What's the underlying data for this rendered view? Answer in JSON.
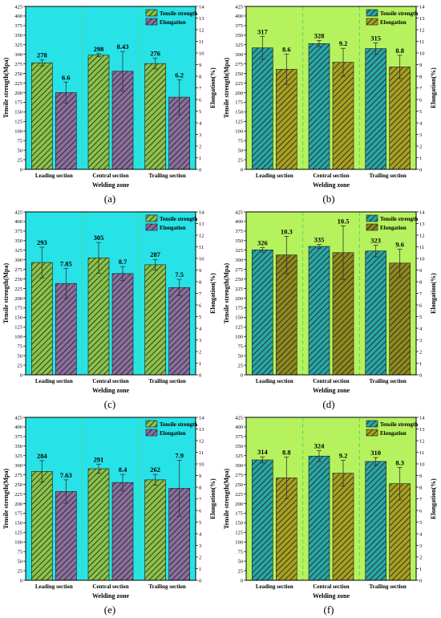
{
  "chart_data": [
    {
      "id": "a",
      "type": "bar",
      "caption": "(a)",
      "xlabel": "Welding zone",
      "ylabel": "Tensile strength(Mpa)",
      "y2label": "Elongation(%)",
      "ylim": [
        0,
        425
      ],
      "y2lim": [
        0,
        14
      ],
      "categories": [
        "Leading section",
        "Central section",
        "Trailing section"
      ],
      "background": "#27e3e7",
      "series": [
        {
          "name": "Tensile strength",
          "axis": "left",
          "values": [
            278,
            298,
            276
          ],
          "labels": [
            "278",
            "298",
            "276"
          ],
          "errors": [
            8,
            4,
            14
          ],
          "color": "#8bc34a"
        },
        {
          "name": "Elongation",
          "axis": "right",
          "values": [
            6.6,
            8.43,
            6.2
          ],
          "labels": [
            "6.6",
            "8.43",
            "6.2"
          ],
          "errors": [
            0.9,
            1.7,
            1.5
          ],
          "color": "#8a6f9e"
        }
      ]
    },
    {
      "id": "b",
      "type": "bar",
      "caption": "(b)",
      "xlabel": "Welding zone",
      "ylabel": "Tensile strength(Mpa)",
      "y2label": "Elongation(%)",
      "ylim": [
        0,
        425
      ],
      "y2lim": [
        0,
        14
      ],
      "categories": [
        "Leading section",
        "Central section",
        "Trailing section"
      ],
      "background": "#b6f25e",
      "series": [
        {
          "name": "Tensile strength",
          "axis": "left",
          "values": [
            317,
            328,
            315
          ],
          "labels": [
            "317",
            "328",
            "315"
          ],
          "errors": [
            30,
            8,
            15
          ],
          "color": "#2aa6a6"
        },
        {
          "name": "Elongation",
          "axis": "right",
          "values": [
            8.6,
            9.2,
            8.8
          ],
          "labels": [
            "8.6",
            "9.2",
            "8.8"
          ],
          "errors": [
            1.3,
            1.2,
            1.0
          ],
          "color": "#a8a022"
        }
      ]
    },
    {
      "id": "c",
      "type": "bar",
      "caption": "(c)",
      "xlabel": "Welding zone",
      "ylabel": "Tensile strength(Mpa)",
      "y2label": "Elongation(%)",
      "ylim": [
        0,
        425
      ],
      "y2lim": [
        0,
        14
      ],
      "categories": [
        "Leading section",
        "Central section",
        "Trailing section"
      ],
      "background": "#27e3e7",
      "series": [
        {
          "name": "Tensile strength",
          "axis": "left",
          "values": [
            293,
            305,
            287
          ],
          "labels": [
            "293",
            "305",
            "287"
          ],
          "errors": [
            40,
            40,
            14
          ],
          "color": "#8bc34a"
        },
        {
          "name": "Elongation",
          "axis": "right",
          "values": [
            7.85,
            8.7,
            7.5
          ],
          "labels": [
            "7.85",
            "8.7",
            "7.5"
          ],
          "errors": [
            1.3,
            0.6,
            0.7
          ],
          "color": "#8a6f9e"
        }
      ]
    },
    {
      "id": "d",
      "type": "bar",
      "caption": "(d)",
      "xlabel": "Welding zone",
      "ylabel": "Tensile strength(Mpa)",
      "y2label": "Elongation(%)",
      "ylim": [
        0,
        425
      ],
      "y2lim": [
        0,
        14
      ],
      "categories": [
        "Leading section",
        "Central section",
        "Trailing section"
      ],
      "background": "#b6f25e",
      "series": [
        {
          "name": "Tensile strength",
          "axis": "left",
          "values": [
            326,
            335,
            323
          ],
          "labels": [
            "326",
            "335",
            "323"
          ],
          "errors": [
            6,
            5,
            15
          ],
          "color": "#2aa6a6"
        },
        {
          "name": "Elongation",
          "axis": "right",
          "values": [
            10.3,
            10.5,
            9.6
          ],
          "labels": [
            "10.3",
            "10.5",
            "9.6"
          ],
          "errors": [
            1.6,
            2.3,
            1.2
          ],
          "color": "#8e8a1e"
        }
      ]
    },
    {
      "id": "e",
      "type": "bar",
      "caption": "(e)",
      "xlabel": "Welding zone",
      "ylabel": "Tensile strength(Mpa)",
      "y2label": "Elongation(%)",
      "ylim": [
        0,
        425
      ],
      "y2lim": [
        0,
        14
      ],
      "categories": [
        "Leading section",
        "Central section",
        "Trailing section"
      ],
      "background": "#27e3e7",
      "series": [
        {
          "name": "Tensile strength",
          "axis": "left",
          "values": [
            284,
            291,
            262
          ],
          "labels": [
            "284",
            "291",
            "262"
          ],
          "errors": [
            28,
            12,
            14
          ],
          "color": "#8bc34a"
        },
        {
          "name": "Elongation",
          "axis": "right",
          "values": [
            7.63,
            8.4,
            7.9
          ],
          "labels": [
            "7.63",
            "8.4",
            "7.9"
          ],
          "errors": [
            1.0,
            0.7,
            2.4
          ],
          "color": "#8a6f9e"
        }
      ]
    },
    {
      "id": "f",
      "type": "bar",
      "caption": "(f)",
      "xlabel": "Welding zone",
      "ylabel": "Tensile strength(Mpa)",
      "y2label": "Elongation(%)",
      "ylim": [
        0,
        425
      ],
      "y2lim": [
        0,
        14
      ],
      "categories": [
        "Leading section",
        "Central section",
        "Trailing section"
      ],
      "background": "#b6f25e",
      "series": [
        {
          "name": "Tensile strength",
          "axis": "left",
          "values": [
            314,
            324,
            310
          ],
          "labels": [
            "314",
            "324",
            "310"
          ],
          "errors": [
            8,
            14,
            10
          ],
          "color": "#2aa6a6"
        },
        {
          "name": "Elongation",
          "axis": "right",
          "values": [
            8.8,
            9.2,
            8.3
          ],
          "labels": [
            "8.8",
            "9.2",
            "8.3"
          ],
          "errors": [
            1.8,
            1.1,
            1.4
          ],
          "color": "#a8a022"
        }
      ]
    }
  ]
}
